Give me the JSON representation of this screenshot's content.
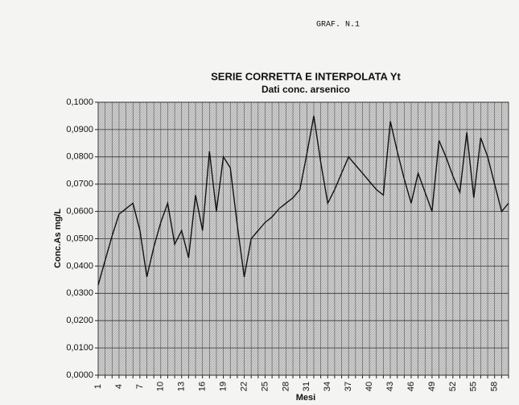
{
  "header": "GRAF. N.1",
  "chart_data": {
    "type": "line",
    "title": "SERIE CORRETTA E INTERPOLATA Yt",
    "subtitle": "Dati conc. arsenico",
    "x_label": "Mesi",
    "y_label": "Conc.As mg/L",
    "categories": [
      "1",
      null,
      null,
      "4",
      null,
      null,
      "7",
      null,
      null,
      "10",
      null,
      null,
      "13",
      null,
      null,
      "16",
      null,
      null,
      "19",
      null,
      null,
      "22",
      null,
      null,
      "25",
      null,
      null,
      "28",
      null,
      null,
      "31",
      null,
      null,
      "34",
      null,
      null,
      "37",
      null,
      null,
      "40",
      null,
      null,
      "43",
      null,
      null,
      "46",
      null,
      null,
      "49",
      null,
      null,
      "52",
      null,
      null,
      "55",
      null,
      null,
      "58",
      null,
      null
    ],
    "series": [
      {
        "name": "Yt",
        "color": "#111111",
        "values": [
          0.033,
          0.042,
          0.051,
          0.059,
          0.061,
          0.063,
          0.053,
          0.036,
          0.047,
          0.056,
          0.063,
          0.048,
          0.053,
          0.043,
          0.066,
          0.053,
          0.082,
          0.06,
          0.08,
          0.076,
          0.055,
          0.036,
          0.05,
          0.053,
          0.056,
          0.058,
          0.061,
          0.063,
          0.065,
          0.068,
          0.081,
          0.095,
          0.078,
          0.063,
          0.068,
          0.074,
          0.08,
          0.077,
          0.074,
          0.071,
          0.068,
          0.066,
          0.093,
          0.082,
          0.072,
          0.063,
          0.074,
          0.067,
          0.06,
          0.086,
          0.08,
          0.073,
          0.067,
          0.089,
          0.065,
          0.087,
          0.08,
          0.07,
          0.06,
          0.063
        ]
      }
    ],
    "ylim": [
      0,
      0.1
    ],
    "yticks": [
      {
        "value": 0,
        "label": "0,0000"
      },
      {
        "value": 0.01,
        "label": "0,0100"
      },
      {
        "value": 0.02,
        "label": "0,0200"
      },
      {
        "value": 0.03,
        "label": "0,0300"
      },
      {
        "value": 0.04,
        "label": "0,0400"
      },
      {
        "value": 0.05,
        "label": "0,0500"
      },
      {
        "value": 0.06,
        "label": "0,0600"
      },
      {
        "value": 0.07,
        "label": "0,0700"
      },
      {
        "value": 0.08,
        "label": "0,0800"
      },
      {
        "value": 0.09,
        "label": "0,0900"
      },
      {
        "value": 0.1,
        "label": "0,1000"
      }
    ],
    "grid": true
  }
}
